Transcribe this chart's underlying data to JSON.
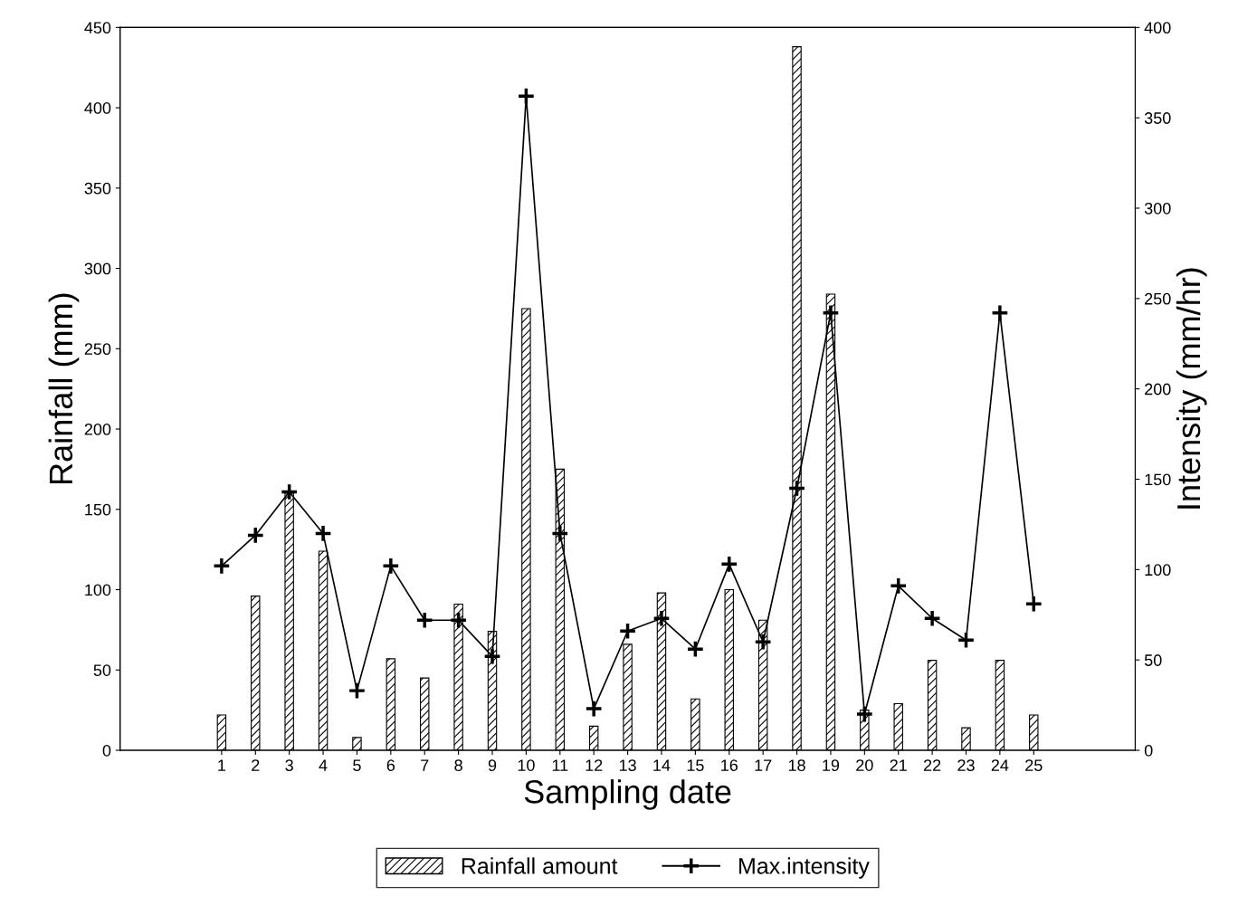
{
  "chart_data": {
    "type": "bar",
    "xlabel": "Sampling date",
    "ylabel": "Rainfall (mm)",
    "y2label": "Intensity (mm/hr)",
    "categories": [
      "1",
      "2",
      "3",
      "4",
      "5",
      "6",
      "7",
      "8",
      "9",
      "10",
      "11",
      "12",
      "13",
      "14",
      "15",
      "16",
      "17",
      "18",
      "19",
      "20",
      "21",
      "22",
      "23",
      "24",
      "25"
    ],
    "series": [
      {
        "name": "Rainfall amount",
        "color": "#000000",
        "values": [
          22,
          96,
          160,
          124,
          8,
          57,
          45,
          91,
          74,
          275,
          175,
          15,
          66,
          98,
          32,
          100,
          81,
          438,
          284,
          25,
          29,
          56,
          14,
          56,
          22
        ]
      },
      {
        "name": "Max.intensity",
        "type": "line",
        "axis": "y2",
        "color": "#000000",
        "marker": "cross",
        "line_style": "solid",
        "values": [
          102,
          119,
          143,
          120,
          33,
          102,
          72,
          72,
          52,
          362,
          120,
          23,
          66,
          73,
          56,
          103,
          60,
          145,
          242,
          20,
          91,
          73,
          61,
          242,
          81
        ]
      }
    ],
    "ylim": [
      0,
      450
    ],
    "yticks": [
      0,
      50,
      100,
      150,
      200,
      250,
      300,
      350,
      400,
      450
    ],
    "y2lim": [
      0,
      400
    ],
    "y2ticks": [
      0,
      50,
      100,
      150,
      200,
      250,
      300,
      350,
      400
    ],
    "grid": false,
    "legend": "bottom"
  }
}
